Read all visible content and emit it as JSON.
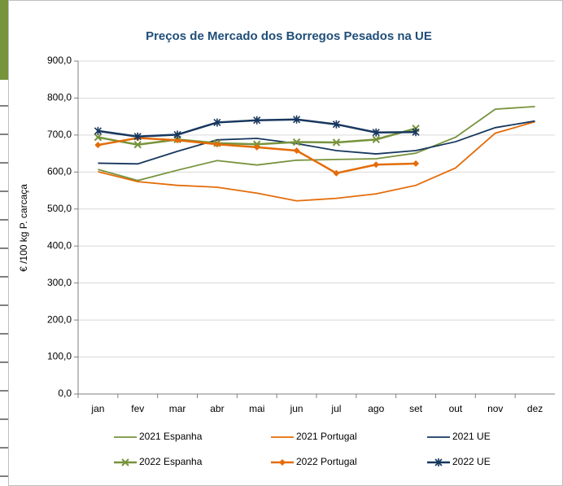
{
  "chart_data": {
    "type": "line",
    "title": "Preços de Mercado dos Borregos Pesados na UE",
    "y_label": "€ /100 kg P. carcaça",
    "categories": [
      "jan",
      "fev",
      "mar",
      "abr",
      "mai",
      "jun",
      "jul",
      "ago",
      "set",
      "out",
      "nov",
      "dez"
    ],
    "ylim": [
      0,
      900
    ],
    "yticks": [
      {
        "value": 0,
        "label": "0,0"
      },
      {
        "value": 100,
        "label": "100,0"
      },
      {
        "value": 200,
        "label": "200,0"
      },
      {
        "value": 300,
        "label": "300,0"
      },
      {
        "value": 400,
        "label": "400,0"
      },
      {
        "value": 500,
        "label": "500,0"
      },
      {
        "value": 600,
        "label": "600,0"
      },
      {
        "value": 700,
        "label": "700,0"
      },
      {
        "value": 800,
        "label": "800,0"
      },
      {
        "value": 900,
        "label": "900,0"
      }
    ],
    "grid": true,
    "legend": "bottom",
    "series": [
      {
        "name": "2021 Espanha",
        "color": "#77933c",
        "values": [
          607,
          577,
          605,
          631,
          619,
          632,
          634,
          636,
          651,
          694,
          770,
          777
        ]
      },
      {
        "name": "2021 Portugal",
        "color": "#e46c0a",
        "values": [
          601,
          574,
          564,
          559,
          543,
          522,
          529,
          541,
          564,
          611,
          705,
          736
        ]
      },
      {
        "name": "2021 UE",
        "color": "#17375e",
        "values": [
          624,
          622,
          656,
          687,
          691,
          677,
          658,
          649,
          658,
          682,
          720,
          738
        ]
      },
      {
        "name": "2022 Espanha",
        "color": "#77933c",
        "marker": "x",
        "values": [
          694,
          674,
          688,
          678,
          675,
          681,
          680,
          688,
          718,
          null,
          null,
          null
        ]
      },
      {
        "name": "2022 Portugal",
        "color": "#e46c0a",
        "marker": "diamond",
        "values": [
          673,
          692,
          686,
          675,
          667,
          658,
          597,
          620,
          623,
          null,
          null,
          null
        ]
      },
      {
        "name": "2022 UE",
        "color": "#17375e",
        "marker": "asterisk",
        "values": [
          711,
          696,
          701,
          734,
          740,
          742,
          729,
          707,
          708,
          null,
          null,
          null
        ]
      }
    ]
  }
}
